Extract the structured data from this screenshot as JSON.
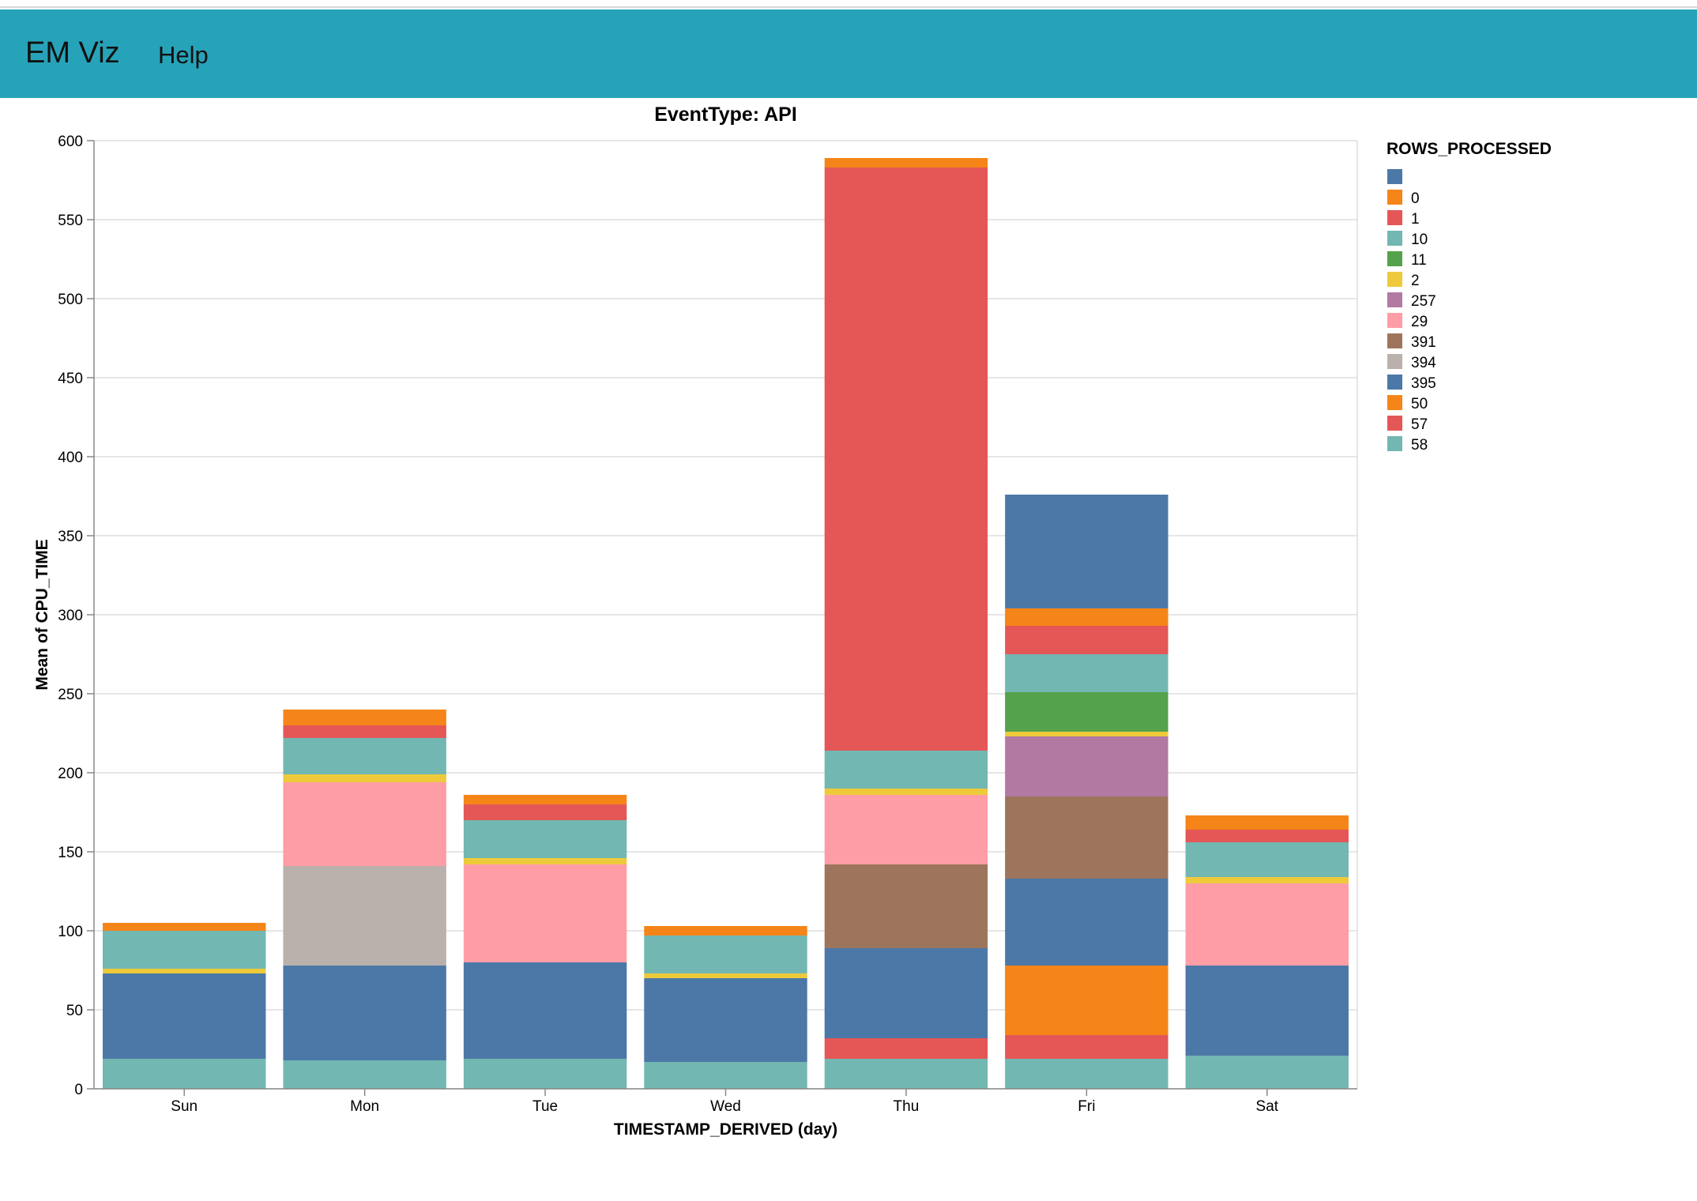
{
  "app": {
    "title": "EM Viz",
    "help_label": "Help"
  },
  "chart_data": {
    "type": "bar",
    "stacked": true,
    "title": "EventType: API",
    "xlabel": "TIMESTAMP_DERIVED (day)",
    "ylabel": "Mean of CPU_TIME",
    "ylim": [
      0,
      600
    ],
    "yticks": [
      0,
      50,
      100,
      150,
      200,
      250,
      300,
      350,
      400,
      450,
      500,
      550,
      600
    ],
    "grid": true,
    "categories": [
      "Sun",
      "Mon",
      "Tue",
      "Wed",
      "Thu",
      "Fri",
      "Sat"
    ],
    "legend_title": "ROWS_PROCESSED",
    "legend_position": "right",
    "series": [
      {
        "name": "58",
        "color": "#72b7b2",
        "values": [
          19,
          18,
          19,
          17,
          19,
          19,
          21
        ]
      },
      {
        "name": "57",
        "color": "#e45756",
        "values": [
          0,
          0,
          0,
          0,
          13,
          15,
          0
        ]
      },
      {
        "name": "50",
        "color": "#f58518",
        "values": [
          0,
          0,
          0,
          0,
          0,
          44,
          0
        ]
      },
      {
        "name": "395",
        "color": "#4c78a8",
        "values": [
          54,
          60,
          61,
          53,
          57,
          55,
          57
        ]
      },
      {
        "name": "394",
        "color": "#bab0ac",
        "values": [
          0,
          63,
          0,
          0,
          0,
          0,
          0
        ]
      },
      {
        "name": "391",
        "color": "#9d755d",
        "values": [
          0,
          0,
          0,
          0,
          53,
          52,
          0
        ]
      },
      {
        "name": "29",
        "color": "#ff9da6",
        "values": [
          0,
          53,
          62,
          0,
          44,
          0,
          52
        ]
      },
      {
        "name": "257",
        "color": "#b279a2",
        "values": [
          0,
          0,
          0,
          0,
          0,
          38,
          0
        ]
      },
      {
        "name": "2",
        "color": "#eeca3b",
        "values": [
          3,
          5,
          4,
          3,
          4,
          3,
          4
        ]
      },
      {
        "name": "11",
        "color": "#54a24b",
        "values": [
          0,
          0,
          0,
          0,
          0,
          25,
          0
        ]
      },
      {
        "name": "10",
        "color": "#72b7b2",
        "values": [
          24,
          23,
          24,
          24,
          24,
          24,
          22
        ]
      },
      {
        "name": "1",
        "color": "#e45756",
        "values": [
          0,
          8,
          10,
          0,
          369,
          18,
          8
        ]
      },
      {
        "name": "0",
        "color": "#f58518",
        "values": [
          5,
          10,
          6,
          6,
          6,
          11,
          9
        ]
      },
      {
        "name": "",
        "color": "#4c78a8",
        "values": [
          0,
          0,
          0,
          0,
          0,
          72,
          0
        ]
      }
    ],
    "legend_items": [
      {
        "label": "",
        "color": "#4c78a8"
      },
      {
        "label": "0",
        "color": "#f58518"
      },
      {
        "label": "1",
        "color": "#e45756"
      },
      {
        "label": "10",
        "color": "#72b7b2"
      },
      {
        "label": "11",
        "color": "#54a24b"
      },
      {
        "label": "2",
        "color": "#eeca3b"
      },
      {
        "label": "257",
        "color": "#b279a2"
      },
      {
        "label": "29",
        "color": "#ff9da6"
      },
      {
        "label": "391",
        "color": "#9d755d"
      },
      {
        "label": "394",
        "color": "#bab0ac"
      },
      {
        "label": "395",
        "color": "#4c78a8"
      },
      {
        "label": "50",
        "color": "#f58518"
      },
      {
        "label": "57",
        "color": "#e45756"
      },
      {
        "label": "58",
        "color": "#72b7b2"
      }
    ]
  }
}
